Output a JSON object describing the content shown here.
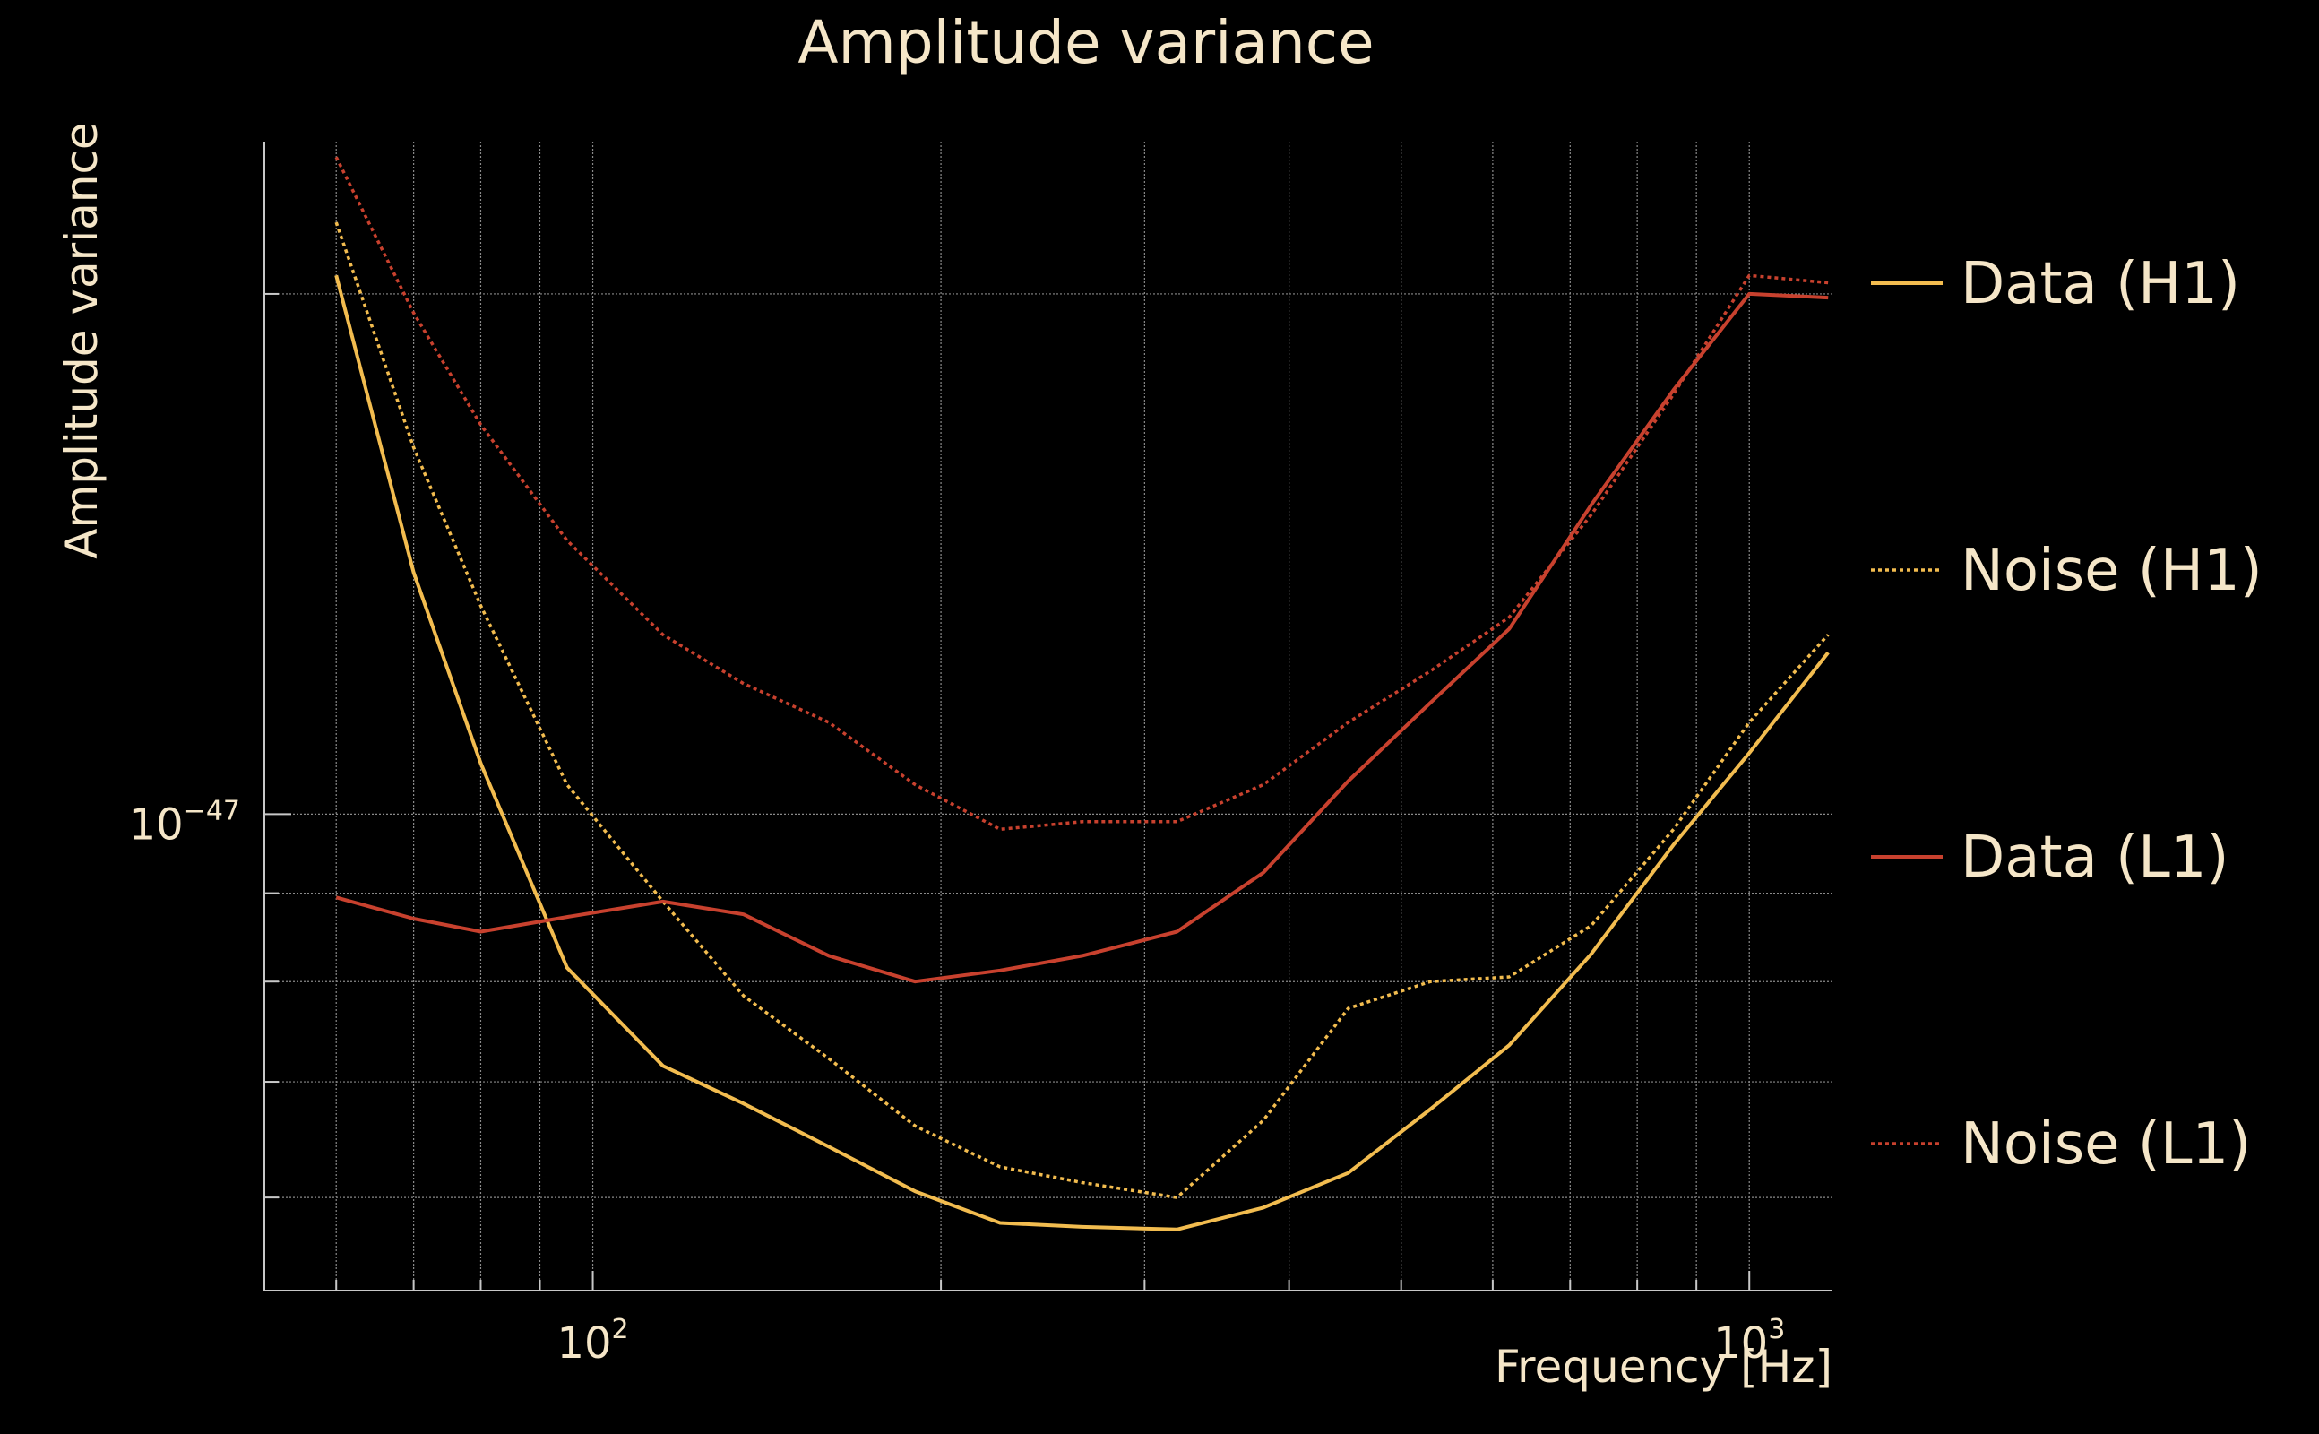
{
  "colors": {
    "background": "#000000",
    "text": "#F5E6C8",
    "grid": "#8A8A8A",
    "axis": "#C8C8C8",
    "h1": "#F2BC4F",
    "l1": "#C8412E"
  },
  "chart_data": {
    "type": "line",
    "title": "Amplitude variance",
    "xlabel": "Frequency [Hz]",
    "ylabel": "Amplitude variance",
    "xscale": "log",
    "yscale": "log",
    "xlim": [
      52,
      1180
    ],
    "ylim": [
      5.3e-48,
      2.45e-47
    ],
    "grid": true,
    "legend_position": "right",
    "x_ticks": [
      {
        "value": 100,
        "base": "10",
        "exp": "2"
      },
      {
        "value": 1000,
        "base": "10",
        "exp": "3"
      }
    ],
    "y_ticks": [
      {
        "value": 1e-47,
        "base": "10",
        "exp": "−47"
      }
    ],
    "x": [
      60,
      70,
      80,
      95,
      115,
      135,
      160,
      190,
      225,
      265,
      320,
      380,
      450,
      530,
      620,
      730,
      860,
      1000,
      1170
    ],
    "series": [
      {
        "name": "Data (H1)",
        "detector": "h1",
        "style": "solid",
        "values": [
          2.05e-47,
          1.38e-47,
          1.07e-47,
          8.15e-48,
          7.15e-48,
          6.8e-48,
          6.42e-48,
          6.05e-48,
          5.8e-48,
          5.77e-48,
          5.75e-48,
          5.92e-48,
          6.2e-48,
          6.75e-48,
          7.35e-48,
          8.3e-48,
          9.6e-48,
          1.085e-47,
          1.24e-47
        ]
      },
      {
        "name": "Noise (H1)",
        "detector": "h1",
        "style": "dotted",
        "values": [
          2.2e-47,
          1.63e-47,
          1.32e-47,
          1.04e-47,
          8.9e-48,
          7.85e-48,
          7.22e-48,
          6.6e-48,
          6.25e-48,
          6.12e-48,
          6e-48,
          6.65e-48,
          7.72e-48,
          8e-48,
          8.05e-48,
          8.62e-48,
          9.8e-48,
          1.13e-47,
          1.27e-47
        ]
      },
      {
        "name": "Data (L1)",
        "detector": "l1",
        "style": "solid",
        "values": [
          8.95e-48,
          8.7e-48,
          8.55e-48,
          8.72e-48,
          8.9e-48,
          8.75e-48,
          8.28e-48,
          8e-48,
          8.12e-48,
          8.28e-48,
          8.55e-48,
          9.25e-48,
          1.045e-47,
          1.16e-47,
          1.28e-47,
          1.51e-47,
          1.76e-47,
          2e-47,
          1.99e-47
        ]
      },
      {
        "name": "Noise (L1)",
        "detector": "l1",
        "style": "dotted",
        "values": [
          2.4e-47,
          1.95e-47,
          1.68e-47,
          1.44e-47,
          1.27e-47,
          1.19e-47,
          1.13e-47,
          1.04e-47,
          9.8e-48,
          9.9e-48,
          9.9e-48,
          1.04e-47,
          1.13e-47,
          1.21e-47,
          1.3e-47,
          1.49e-47,
          1.75e-47,
          2.05e-47,
          2.03e-47
        ]
      }
    ]
  }
}
